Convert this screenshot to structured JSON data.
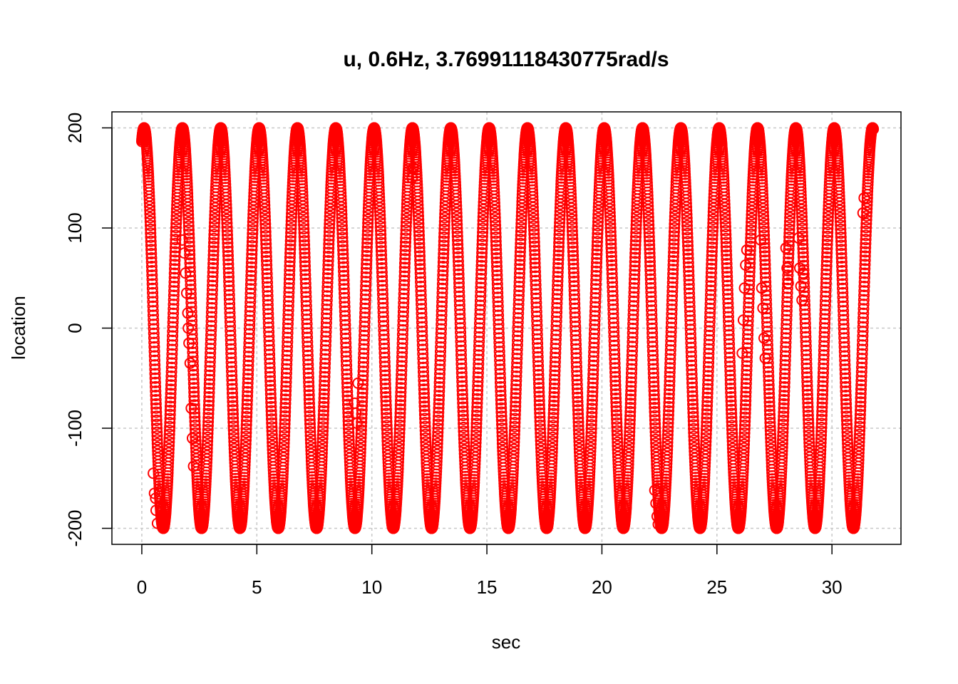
{
  "chart_data": {
    "type": "scatter",
    "title": "u, 0.6Hz, 3.76991118430775rad/s",
    "xlabel": "sec",
    "ylabel": "location",
    "xlim": [
      -1.3,
      33.0
    ],
    "ylim": [
      -216,
      216
    ],
    "x_ticks": [
      0,
      5,
      10,
      15,
      20,
      25,
      30
    ],
    "x_tick_labels": [
      "0",
      "5",
      "10",
      "15",
      "20",
      "25",
      "30"
    ],
    "y_ticks": [
      -200,
      -100,
      0,
      100,
      200
    ],
    "y_tick_labels": [
      "-200",
      "-100",
      "0",
      "100",
      "200"
    ],
    "grid": true,
    "marker": "open-circle",
    "color": "#ff0000",
    "grid_color": "#c8c8c8",
    "series": [
      {
        "x_start": 0.0,
        "x_end": 31.8,
        "amplitude": 200,
        "frequency_hz": 0.6,
        "phase_rad": 1.2,
        "angular_velocity_rad_s": 3.76991118430775
      }
    ],
    "outlier_points": [
      {
        "x": 0.5,
        "y": -145
      },
      {
        "x": 0.55,
        "y": -165
      },
      {
        "x": 0.6,
        "y": -170
      },
      {
        "x": 0.62,
        "y": -182
      },
      {
        "x": 0.68,
        "y": -195
      },
      {
        "x": 1.75,
        "y": 88
      },
      {
        "x": 1.85,
        "y": 75
      },
      {
        "x": 1.9,
        "y": 55
      },
      {
        "x": 1.95,
        "y": 35
      },
      {
        "x": 2.0,
        "y": 15
      },
      {
        "x": 2.02,
        "y": 0
      },
      {
        "x": 2.05,
        "y": -15
      },
      {
        "x": 2.1,
        "y": -35
      },
      {
        "x": 2.15,
        "y": -80
      },
      {
        "x": 2.2,
        "y": -110
      },
      {
        "x": 2.25,
        "y": -138
      },
      {
        "x": 9.25,
        "y": -75
      },
      {
        "x": 9.3,
        "y": -85
      },
      {
        "x": 9.35,
        "y": -95
      },
      {
        "x": 9.4,
        "y": -55
      },
      {
        "x": 11.75,
        "y": 150
      },
      {
        "x": 11.8,
        "y": 160
      },
      {
        "x": 22.3,
        "y": -162
      },
      {
        "x": 22.35,
        "y": -175
      },
      {
        "x": 22.4,
        "y": -188
      },
      {
        "x": 22.45,
        "y": -196
      },
      {
        "x": 26.1,
        "y": -25
      },
      {
        "x": 26.15,
        "y": 8
      },
      {
        "x": 26.2,
        "y": 40
      },
      {
        "x": 26.25,
        "y": 63
      },
      {
        "x": 26.3,
        "y": 78
      },
      {
        "x": 26.9,
        "y": 88
      },
      {
        "x": 26.95,
        "y": 40
      },
      {
        "x": 27.0,
        "y": 20
      },
      {
        "x": 27.05,
        "y": -10
      },
      {
        "x": 27.1,
        "y": -30
      },
      {
        "x": 28.0,
        "y": 80
      },
      {
        "x": 28.05,
        "y": 60
      },
      {
        "x": 28.1,
        "y": 45
      },
      {
        "x": 28.55,
        "y": 90
      },
      {
        "x": 28.6,
        "y": 60
      },
      {
        "x": 28.65,
        "y": 42
      },
      {
        "x": 28.7,
        "y": 28
      },
      {
        "x": 28.75,
        "y": 55
      },
      {
        "x": 31.35,
        "y": 115
      },
      {
        "x": 31.4,
        "y": 130
      }
    ]
  }
}
